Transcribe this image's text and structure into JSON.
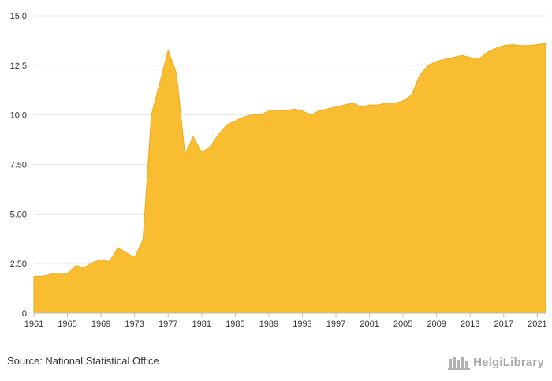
{
  "chart_data": {
    "type": "area",
    "title": "",
    "xlabel": "",
    "ylabel": "",
    "ylim": [
      0,
      15
    ],
    "xlim": [
      1961,
      2022
    ],
    "y_ticks": [
      "0",
      "2.50",
      "5.00",
      "7.50",
      "10.0",
      "12.5",
      "15.0"
    ],
    "x_ticks": [
      "1961",
      "1965",
      "1969",
      "1973",
      "1977",
      "1981",
      "1985",
      "1989",
      "1993",
      "1997",
      "2001",
      "2005",
      "2009",
      "2013",
      "2017",
      "2021"
    ],
    "grid": "horizontal",
    "color": "#F9BD31",
    "x": [
      1961,
      1962,
      1963,
      1964,
      1965,
      1966,
      1967,
      1968,
      1969,
      1970,
      1971,
      1972,
      1973,
      1974,
      1975,
      1976,
      1977,
      1978,
      1979,
      1980,
      1981,
      1982,
      1983,
      1984,
      1985,
      1986,
      1987,
      1988,
      1989,
      1990,
      1991,
      1992,
      1993,
      1994,
      1995,
      1996,
      1997,
      1998,
      1999,
      2000,
      2001,
      2002,
      2003,
      2004,
      2005,
      2006,
      2007,
      2008,
      2009,
      2010,
      2011,
      2012,
      2013,
      2014,
      2015,
      2016,
      2017,
      2018,
      2019,
      2020,
      2021,
      2022
    ],
    "values": [
      1.85,
      1.85,
      2.0,
      2.0,
      2.0,
      2.4,
      2.3,
      2.55,
      2.7,
      2.6,
      3.3,
      3.05,
      2.8,
      3.7,
      10.0,
      11.6,
      13.25,
      12.1,
      8.0,
      8.9,
      8.1,
      8.4,
      9.0,
      9.5,
      9.7,
      9.9,
      10.0,
      10.0,
      10.2,
      10.2,
      10.2,
      10.3,
      10.2,
      10.0,
      10.2,
      10.3,
      10.4,
      10.5,
      10.6,
      10.4,
      10.5,
      10.5,
      10.6,
      10.6,
      10.7,
      11.0,
      12.0,
      12.5,
      12.7,
      12.8,
      12.9,
      13.0,
      12.9,
      12.8,
      13.15,
      13.35,
      13.5,
      13.55,
      13.5,
      13.5,
      13.55,
      13.6
    ]
  },
  "footer": {
    "source": "Source: National Statistical Office",
    "brand": "HelgiLibrary"
  }
}
